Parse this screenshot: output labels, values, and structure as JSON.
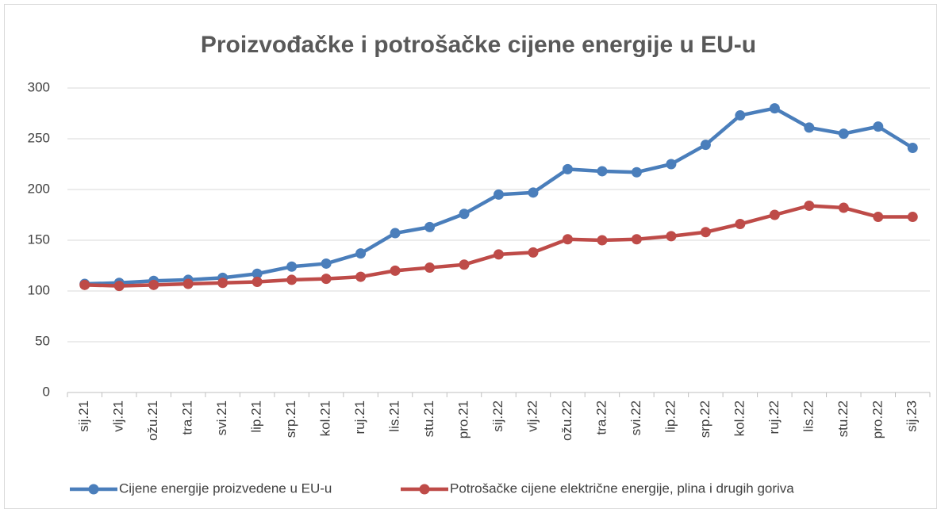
{
  "chart_data": {
    "type": "line",
    "title": "Proizvođačke i potrošačke cijene energije u EU-u",
    "categories": [
      "sij.21",
      "vlj.21",
      "ožu.21",
      "tra.21",
      "svi.21",
      "lip.21",
      "srp.21",
      "kol.21",
      "ruj.21",
      "lis.21",
      "stu.21",
      "pro.21",
      "sij.22",
      "vlj.22",
      "ožu.22",
      "tra.22",
      "svi.22",
      "lip.22",
      "srp.22",
      "kol.22",
      "ruj.22",
      "lis.22",
      "stu.22",
      "pro.22",
      "sij.23"
    ],
    "series": [
      {
        "name": "Cijene energije proizvedene u EU-u",
        "color": "#4a7ebb",
        "values": [
          107,
          108,
          110,
          111,
          113,
          117,
          124,
          127,
          137,
          157,
          163,
          176,
          195,
          197,
          220,
          218,
          217,
          225,
          244,
          273,
          280,
          261,
          255,
          262,
          241
        ]
      },
      {
        "name": "Potrošačke cijene električne energije, plina i drugih goriva",
        "color": "#be4b48",
        "values": [
          106,
          105,
          106,
          107,
          108,
          109,
          111,
          112,
          114,
          120,
          123,
          126,
          136,
          138,
          151,
          150,
          151,
          154,
          158,
          166,
          175,
          184,
          182,
          173,
          173
        ]
      }
    ],
    "ylim": [
      0,
      300
    ],
    "yticks": [
      0,
      50,
      100,
      150,
      200,
      250,
      300
    ],
    "grid": true,
    "legend": "bottom"
  }
}
